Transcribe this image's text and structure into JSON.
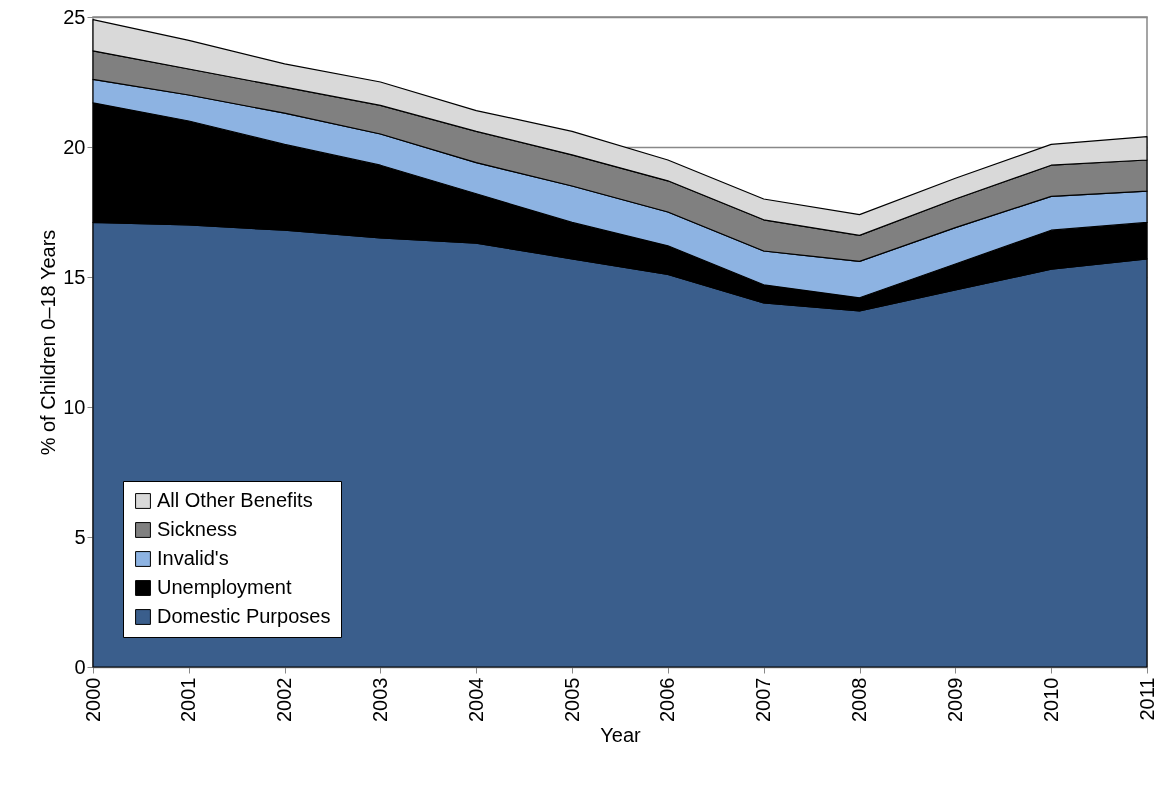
{
  "chart_data": {
    "type": "area",
    "stacked": true,
    "xlabel": "Year",
    "ylabel": "% of Children 0–18 Years",
    "x": [
      2000,
      2001,
      2002,
      2003,
      2004,
      2005,
      2006,
      2007,
      2008,
      2009,
      2010,
      2011
    ],
    "xlim": [
      2000,
      2011
    ],
    "xticks": [
      2000,
      2001,
      2002,
      2003,
      2004,
      2005,
      2006,
      2007,
      2008,
      2009,
      2010,
      2011
    ],
    "ylim": [
      0,
      25
    ],
    "yticks": [
      0,
      5,
      10,
      15,
      20,
      25
    ],
    "grid": "y",
    "legend": "bottom left",
    "series": [
      {
        "name": "Domestic Purposes",
        "color": "#3a5e8c",
        "values": [
          17.1,
          17.0,
          16.8,
          16.5,
          16.3,
          15.7,
          15.1,
          14.0,
          13.7,
          14.5,
          15.3,
          15.7
        ]
      },
      {
        "name": "Unemployment",
        "color": "#000000",
        "values": [
          4.6,
          4.0,
          3.3,
          2.8,
          1.9,
          1.4,
          1.1,
          0.7,
          0.5,
          1.0,
          1.5,
          1.4
        ]
      },
      {
        "name": "Invalid's",
        "color": "#8db3e2",
        "values": [
          0.9,
          1.0,
          1.2,
          1.2,
          1.2,
          1.4,
          1.3,
          1.3,
          1.4,
          1.4,
          1.3,
          1.2
        ]
      },
      {
        "name": "Sickness",
        "color": "#808080",
        "values": [
          1.1,
          1.0,
          1.0,
          1.1,
          1.2,
          1.2,
          1.2,
          1.2,
          1.0,
          1.1,
          1.2,
          1.2
        ]
      },
      {
        "name": "All Other Benefits",
        "color": "#d9d9d9",
        "values": [
          1.2,
          1.1,
          0.9,
          0.9,
          0.8,
          0.9,
          0.8,
          0.8,
          0.8,
          0.8,
          0.8,
          0.9
        ]
      }
    ]
  }
}
